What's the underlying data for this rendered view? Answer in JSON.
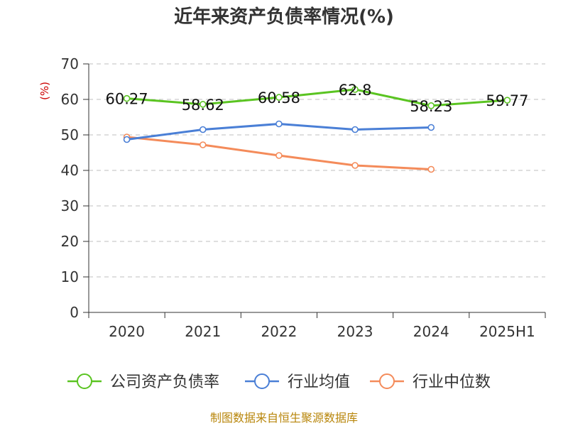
{
  "chart_data": {
    "type": "line",
    "title": "近年来资产负债率情况(%)",
    "ylabel": "(%)",
    "xlabel": "",
    "categories": [
      "2020",
      "2021",
      "2022",
      "2023",
      "2024",
      "2025H1"
    ],
    "ylim": [
      0,
      70
    ],
    "yticks": [
      0,
      10,
      20,
      30,
      40,
      50,
      60,
      70
    ],
    "grid": true,
    "legend_position": "bottom",
    "series": [
      {
        "name": "公司资产负债率",
        "color": "#5ac421",
        "values": [
          60.27,
          58.62,
          60.58,
          62.8,
          58.23,
          59.77
        ],
        "labels": [
          "60.27",
          "58.62",
          "60.58",
          "62.8",
          "58.23",
          "59.77"
        ]
      },
      {
        "name": "行业均值",
        "color": "#4a7fd6",
        "values": [
          48.7,
          51.5,
          53.1,
          51.5,
          52.1,
          null
        ]
      },
      {
        "name": "行业中位数",
        "color": "#f48b5a",
        "values": [
          49.4,
          47.2,
          44.2,
          41.4,
          40.3,
          null
        ]
      }
    ]
  },
  "source_note": "制图数据来自恒生聚源数据库"
}
